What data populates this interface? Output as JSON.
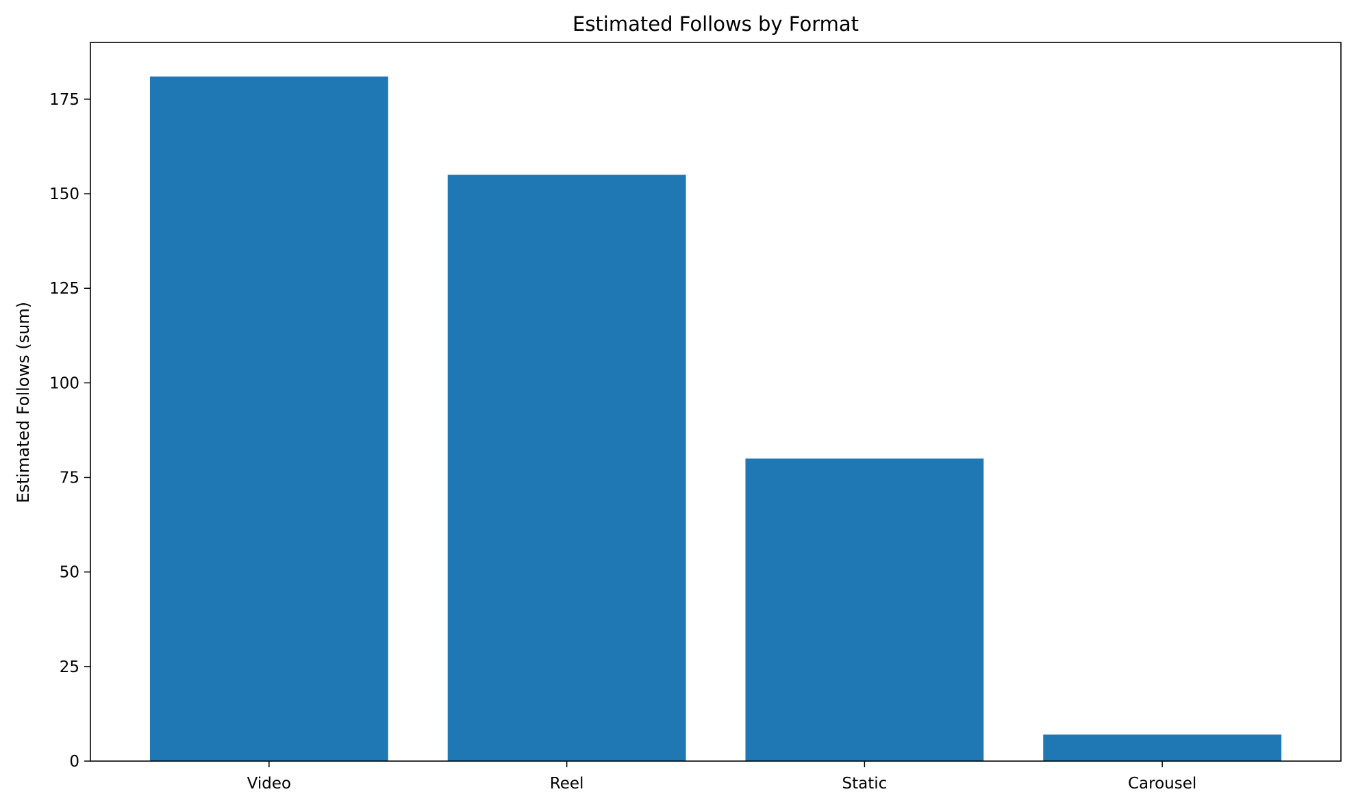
{
  "chart_data": {
    "type": "bar",
    "title": "Estimated Follows by Format",
    "xlabel": "",
    "ylabel": "Estimated Follows (sum)",
    "categories": [
      "Video",
      "Reel",
      "Static",
      "Carousel"
    ],
    "values": [
      181,
      155,
      80,
      7
    ],
    "ylim": [
      0,
      190
    ],
    "yticks": [
      0,
      25,
      50,
      75,
      100,
      125,
      150,
      175
    ],
    "grid": false,
    "legend": "none",
    "bar_color": "#1f77b4"
  }
}
